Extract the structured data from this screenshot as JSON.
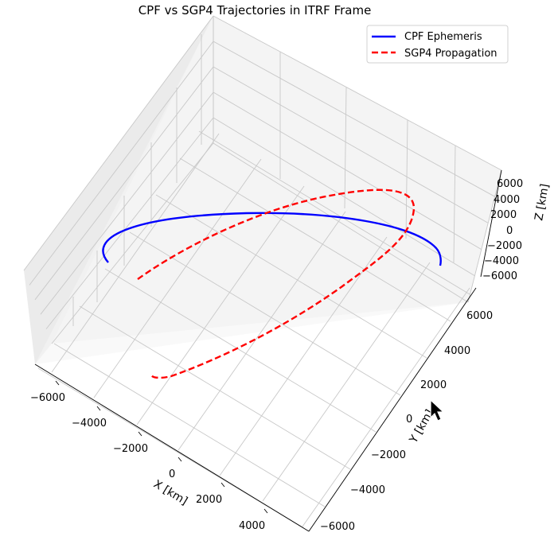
{
  "chart_data": {
    "type": "line",
    "projection": "3d",
    "title": "CPF vs SGP4 Trajectories in ITRF Frame",
    "xlabel": "X [km]",
    "ylabel": "Y [km]",
    "zlabel": "Z [km]",
    "xlim": [
      -7000,
      5000
    ],
    "ylim": [
      -7000,
      7000
    ],
    "zlim": [
      -7000,
      7000
    ],
    "xticks": [
      "−6000",
      "−4000",
      "−2000",
      "0",
      "2000",
      "4000"
    ],
    "yticks": [
      "−6000",
      "−4000",
      "−2000",
      "0",
      "2000",
      "4000",
      "6000"
    ],
    "zticks": [
      "−6000",
      "−4000",
      "−2000",
      "0",
      "2000",
      "4000",
      "6000"
    ],
    "grid": true,
    "legend": "top-right",
    "colors": {
      "cpf": "#0000ff",
      "sgp4": "#ff0000"
    },
    "series": [
      {
        "name": "CPF Ephemeris",
        "style": "solid"
      },
      {
        "name": "SGP4 Propagation",
        "style": "dashed"
      }
    ]
  }
}
